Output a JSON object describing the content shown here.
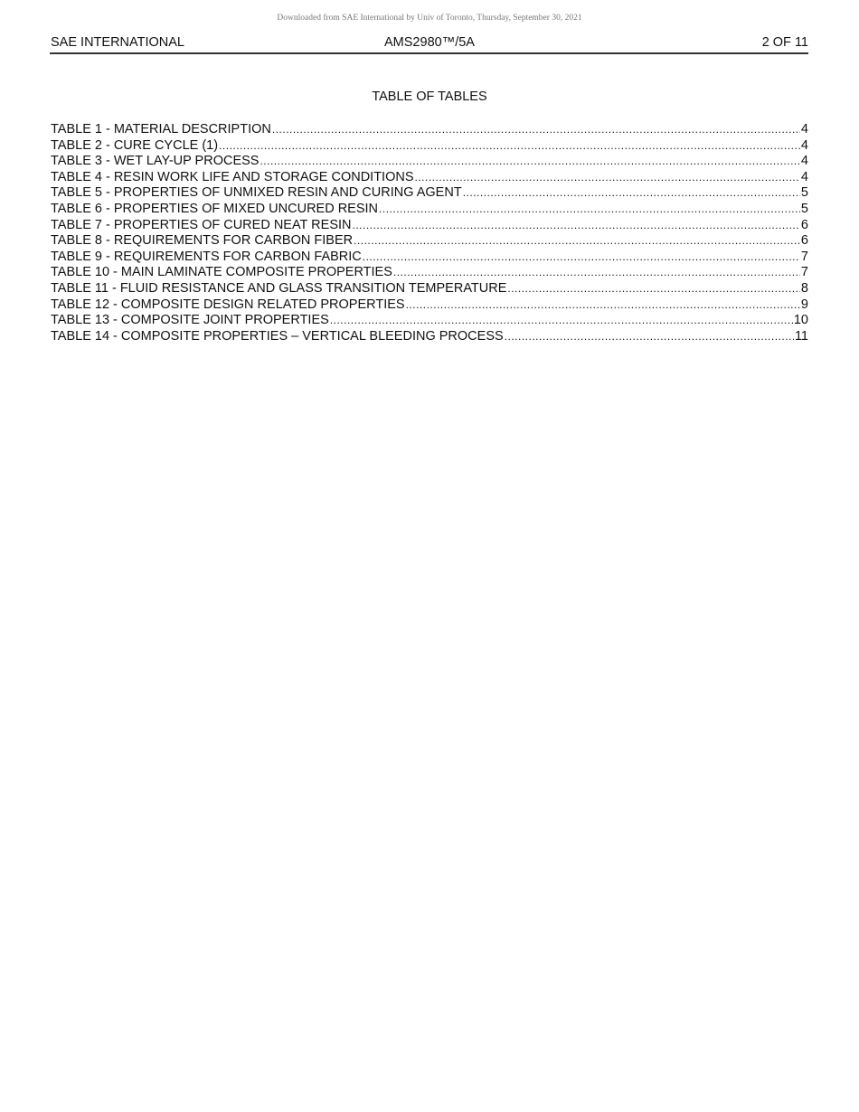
{
  "watermark": "Downloaded from SAE International by Univ of Toronto, Thursday, September 30, 2021",
  "header": {
    "left": "SAE INTERNATIONAL",
    "center": "AMS2980™/5A",
    "right": "2 OF 11"
  },
  "title": "TABLE OF TABLES",
  "entries": [
    {
      "label": "TABLE 1 - MATERIAL DESCRIPTION",
      "page": "4"
    },
    {
      "label": "TABLE 2 - CURE CYCLE (1)",
      "page": "4"
    },
    {
      "label": "TABLE 3 - WET LAY-UP PROCESS",
      "page": "4"
    },
    {
      "label": "TABLE 4 - RESIN WORK LIFE AND STORAGE CONDITIONS",
      "page": "4"
    },
    {
      "label": "TABLE 5 - PROPERTIES OF UNMIXED RESIN AND CURING AGENT",
      "page": "5"
    },
    {
      "label": "TABLE 6 - PROPERTIES OF MIXED UNCURED RESIN",
      "page": "5"
    },
    {
      "label": "TABLE 7 - PROPERTIES OF CURED NEAT RESIN",
      "page": "6"
    },
    {
      "label": "TABLE 8 - REQUIREMENTS FOR CARBON FIBER",
      "page": "6"
    },
    {
      "label": "TABLE 9 - REQUIREMENTS FOR CARBON FABRIC",
      "page": "7"
    },
    {
      "label": "TABLE 10 - MAIN LAMINATE COMPOSITE PROPERTIES",
      "page": "7"
    },
    {
      "label": "TABLE 11 - FLUID RESISTANCE AND GLASS TRANSITION TEMPERATURE",
      "page": "8"
    },
    {
      "label": "TABLE 12 - COMPOSITE DESIGN RELATED PROPERTIES",
      "page": "9"
    },
    {
      "label": "TABLE 13 - COMPOSITE JOINT PROPERTIES",
      "page": "10"
    },
    {
      "label": "TABLE 14 - COMPOSITE PROPERTIES – VERTICAL BLEEDING PROCESS",
      "page": "11"
    }
  ]
}
